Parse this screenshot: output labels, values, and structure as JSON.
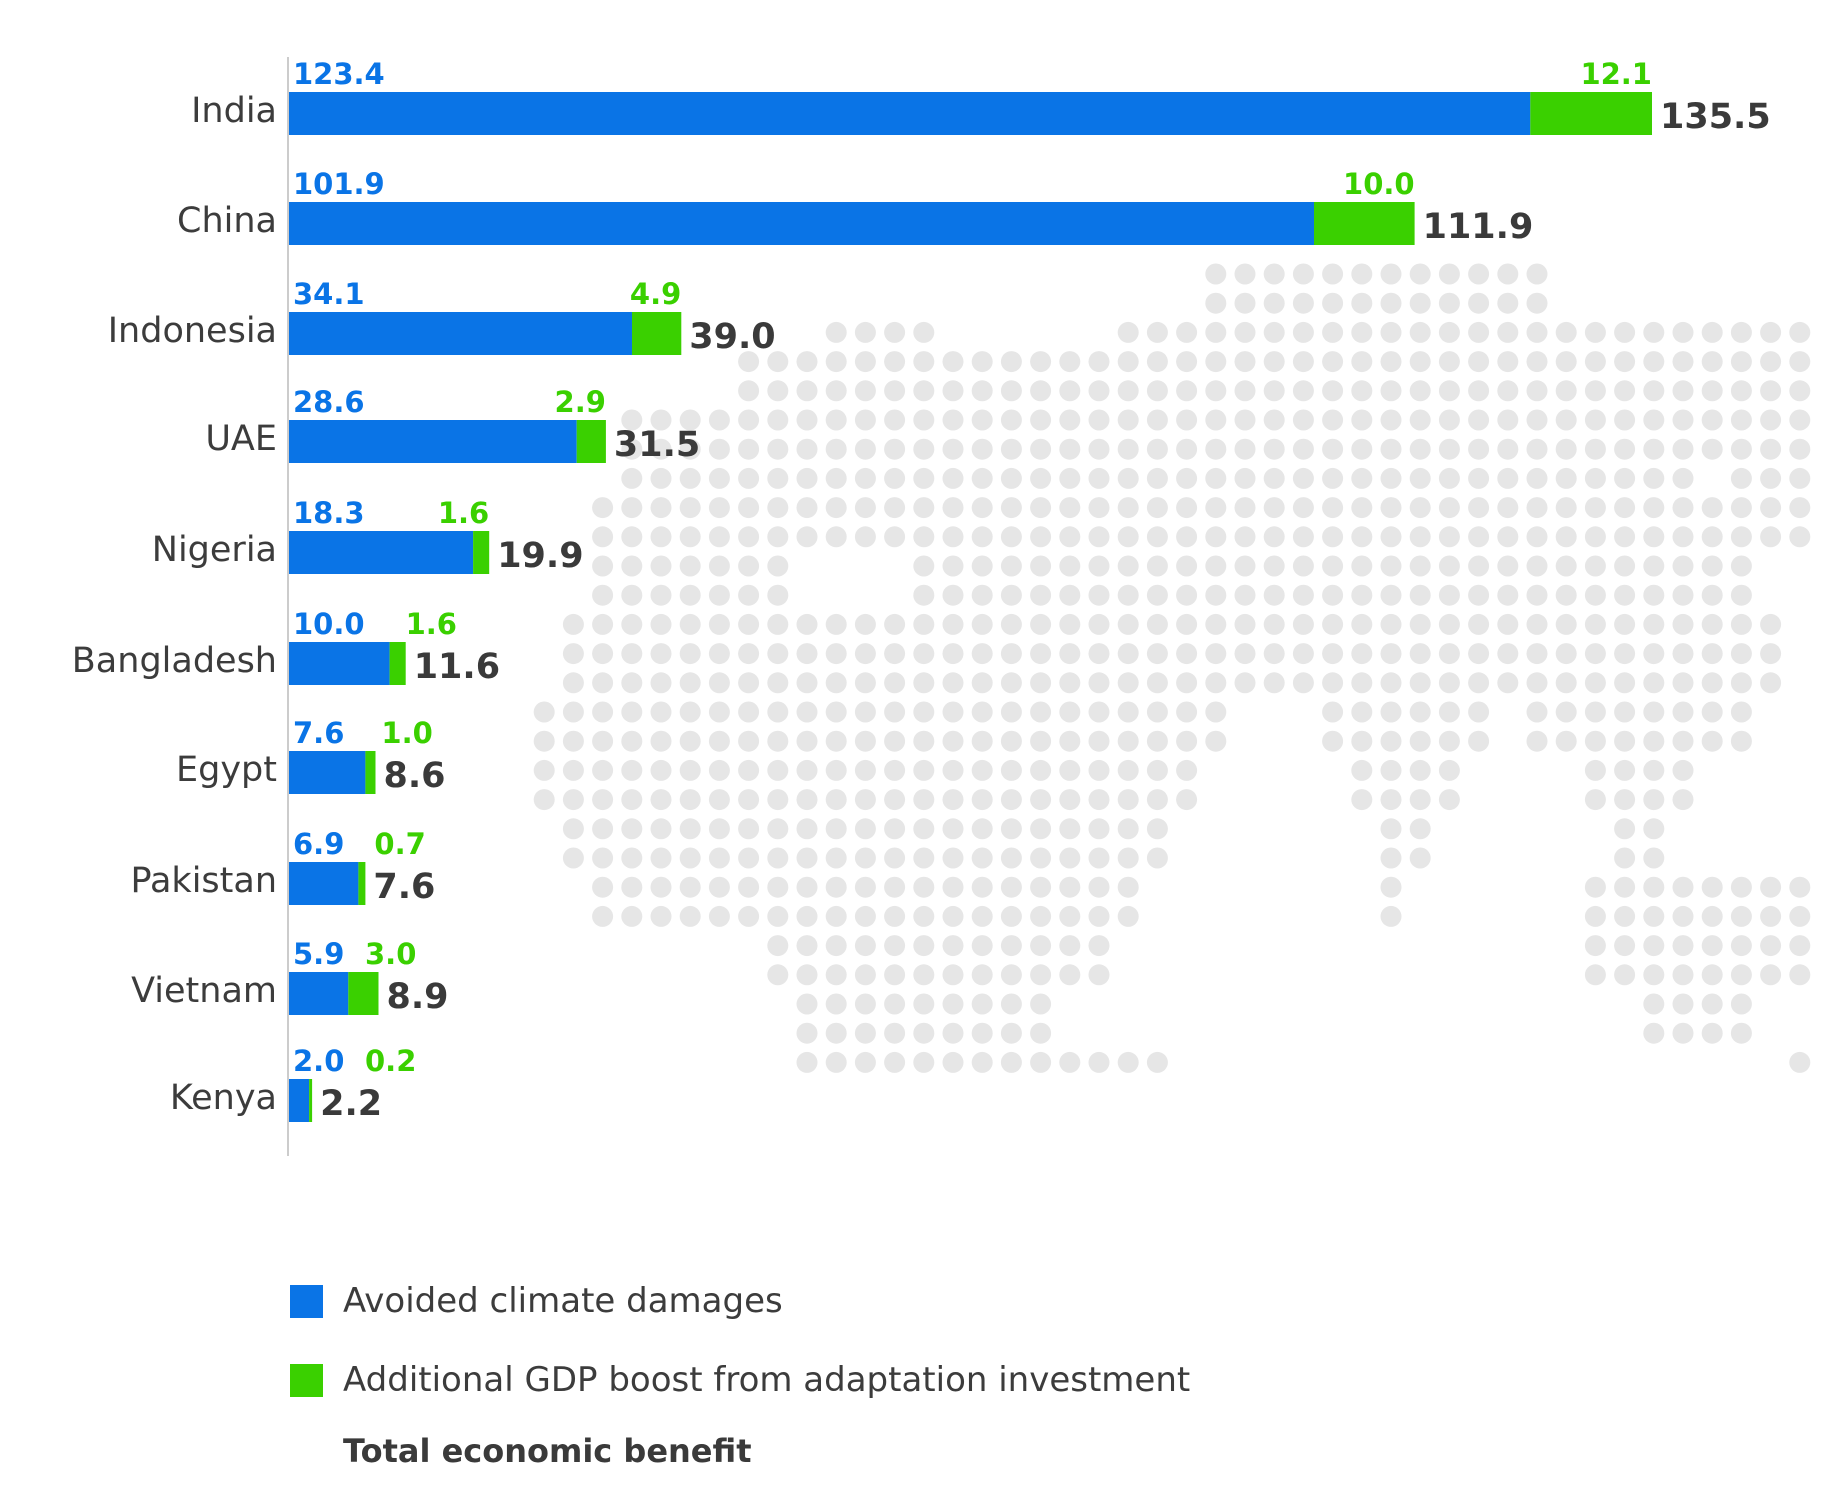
{
  "chart_data": {
    "type": "bar",
    "orientation": "horizontal",
    "stacked": true,
    "categories": [
      "India",
      "China",
      "Indonesia",
      "UAE",
      "Nigeria",
      "Bangladesh",
      "Egypt",
      "Pakistan",
      "Vietnam",
      "Kenya"
    ],
    "series": [
      {
        "name": "Avoided climate damages",
        "color": "#0a74e6",
        "values": [
          123.4,
          101.9,
          34.1,
          28.6,
          18.3,
          10.0,
          7.6,
          6.9,
          5.9,
          2.0
        ],
        "value_labels": [
          "123.4",
          "101.9",
          "34.1",
          "28.6",
          "18.3",
          "10.0",
          "7.6",
          "6.9",
          "5.9",
          "2.0"
        ]
      },
      {
        "name": "Additional GDP boost from adaptation investment",
        "color": "#3ad000",
        "values": [
          12.1,
          10.0,
          4.9,
          2.9,
          1.6,
          1.6,
          1.0,
          0.7,
          3.0,
          0.2
        ],
        "value_labels": [
          "12.1",
          "10.0",
          "4.9",
          "2.9",
          "1.6",
          "1.6",
          "1.0",
          "0.7",
          "3.0",
          "0.2"
        ]
      }
    ],
    "totals": {
      "name": "Total economic benefit",
      "values": [
        135.5,
        111.9,
        39.0,
        31.5,
        19.9,
        11.6,
        8.6,
        7.6,
        8.9,
        2.2
      ],
      "value_labels": [
        "135.5",
        "111.9",
        "39.0",
        "31.5",
        "19.9",
        "11.6",
        "8.6",
        "7.6",
        "8.9",
        "2.2"
      ]
    },
    "title": "",
    "xlabel": "",
    "ylabel": "",
    "xlim": [
      0,
      135.5
    ],
    "grid": false,
    "legend_position": "bottom-left",
    "background": "dotted world map (decorative)"
  },
  "legend": {
    "items": [
      {
        "label": "Avoided climate damages",
        "color": "#0a74e6"
      },
      {
        "label": "Additional GDP boost from adaptation investment",
        "color": "#3ad000"
      }
    ],
    "total_label": "Total economic benefit"
  },
  "colors": {
    "blue": "#0a74e6",
    "green": "#3ad000",
    "total_text": "#3a3a3a",
    "axis": "#cccccc",
    "map_dots": "#e6e6e6"
  }
}
